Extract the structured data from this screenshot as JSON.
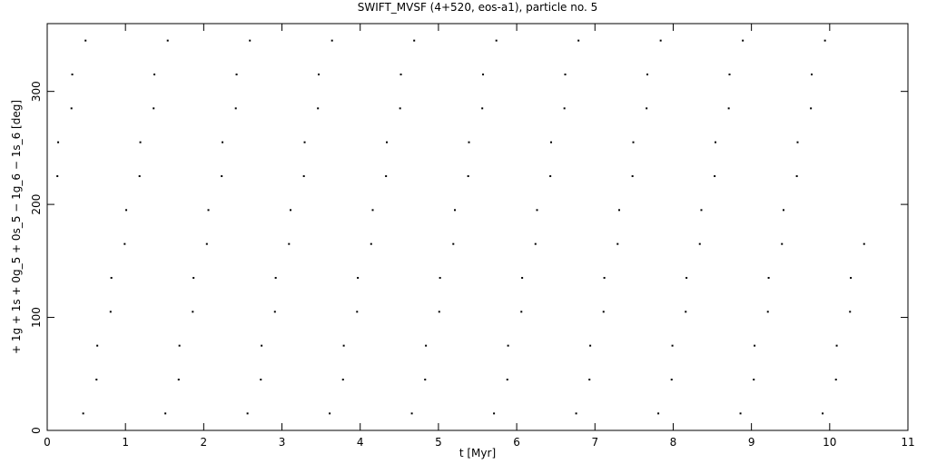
{
  "chart_data": {
    "type": "scatter",
    "title": "SWIFT_MVSF (4+520, eos-a1), particle no. 5",
    "x_label": "t [Myr]",
    "y_label": "+ 1g + 1s + 0g_5 + 0s_5 − 1g_6 − 1s_6 [deg]",
    "color": "#000000",
    "xlim": [
      0,
      11
    ],
    "xticks": [
      0,
      1,
      2,
      3,
      4,
      5,
      6,
      7,
      8,
      9,
      10,
      11
    ],
    "ylim": [
      0,
      360
    ],
    "yticks": [
      0,
      100,
      200,
      300
    ],
    "x": [
      0.13,
      0.14,
      0.31,
      0.32,
      0.49,
      0.46,
      0.63,
      0.64,
      0.81,
      0.82,
      0.99,
      1.01,
      1.18,
      1.19,
      1.36,
      1.37,
      1.54,
      1.51,
      1.68,
      1.69,
      1.86,
      1.87,
      2.04,
      2.06,
      2.23,
      2.24,
      2.41,
      2.42,
      2.59,
      2.56,
      2.73,
      2.74,
      2.91,
      2.92,
      3.09,
      3.11,
      3.28,
      3.29,
      3.46,
      3.47,
      3.64,
      3.61,
      3.78,
      3.79,
      3.96,
      3.97,
      4.14,
      4.16,
      4.33,
      4.34,
      4.51,
      4.52,
      4.69,
      4.66,
      4.83,
      4.84,
      5.01,
      5.02,
      5.19,
      5.21,
      5.38,
      5.39,
      5.56,
      5.57,
      5.74,
      5.71,
      5.88,
      5.89,
      6.06,
      6.07,
      6.24,
      6.26,
      6.43,
      6.44,
      6.61,
      6.62,
      6.79,
      6.76,
      6.93,
      6.94,
      7.11,
      7.12,
      7.29,
      7.31,
      7.48,
      7.49,
      7.66,
      7.67,
      7.84,
      7.81,
      7.98,
      7.99,
      8.16,
      8.17,
      8.34,
      8.36,
      8.53,
      8.54,
      8.71,
      8.72,
      8.89,
      8.86,
      9.03,
      9.04,
      9.21,
      9.22,
      9.39,
      9.41,
      9.58,
      9.59,
      9.76,
      9.77,
      9.94,
      9.91,
      10.08,
      10.09,
      10.26,
      10.27,
      10.44
    ],
    "values": [
      225,
      255,
      285,
      315,
      345,
      15,
      45,
      75,
      105,
      135,
      165,
      195,
      225,
      255,
      285,
      315,
      345,
      15,
      45,
      75,
      105,
      135,
      165,
      195,
      225,
      255,
      285,
      315,
      345,
      15,
      45,
      75,
      105,
      135,
      165,
      195,
      225,
      255,
      285,
      315,
      345,
      15,
      45,
      75,
      105,
      135,
      165,
      195,
      225,
      255,
      285,
      315,
      345,
      15,
      45,
      75,
      105,
      135,
      165,
      195,
      225,
      255,
      285,
      315,
      345,
      15,
      45,
      75,
      105,
      135,
      165,
      195,
      225,
      255,
      285,
      315,
      345,
      15,
      45,
      75,
      105,
      135,
      165,
      195,
      225,
      255,
      285,
      315,
      345,
      15,
      45,
      75,
      105,
      135,
      165,
      195,
      225,
      255,
      285,
      315,
      345,
      15,
      45,
      75,
      105,
      135,
      165,
      195,
      225,
      255,
      285,
      315,
      345,
      15,
      45,
      75,
      105,
      135,
      165
    ]
  }
}
